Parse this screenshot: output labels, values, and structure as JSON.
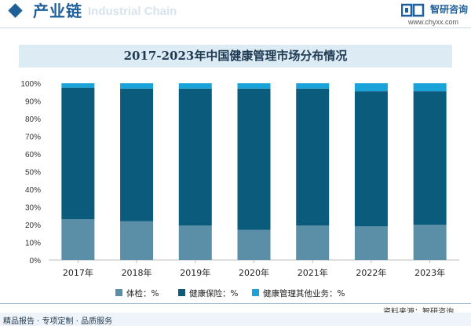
{
  "header": {
    "section_title": "产业链",
    "watermark_text": "Industrial Chain",
    "logo_name": "智研咨询",
    "logo_url": "www.chyxx.com"
  },
  "footer": {
    "source": "资料来源：智研咨询",
    "services": "精品报告 · 专项定制 · 品质服务"
  },
  "colors": {
    "series1": "#5b8fa8",
    "series2": "#0b5b7d",
    "series3": "#1aa3d9",
    "title_bar": "#dcebf4",
    "brand": "#1f5f9a"
  },
  "chart_data": {
    "type": "bar",
    "stacked": true,
    "title": "2017-2023年中国健康管理市场分布情况",
    "categories": [
      "2017年",
      "2018年",
      "2019年",
      "2020年",
      "2021年",
      "2022年",
      "2023年"
    ],
    "series": [
      {
        "name": "体检：%",
        "values": [
          23,
          22,
          19.5,
          17,
          19.5,
          19,
          20
        ]
      },
      {
        "name": "健康保险：%",
        "values": [
          74.5,
          75,
          77.5,
          80,
          77.5,
          76.5,
          75.5
        ]
      },
      {
        "name": "健康管理其他业务：%",
        "values": [
          2.5,
          3,
          3,
          3,
          3,
          4.5,
          4.5
        ]
      }
    ],
    "yticks": [
      "0%",
      "10%",
      "20%",
      "30%",
      "40%",
      "50%",
      "60%",
      "70%",
      "80%",
      "90%",
      "100%"
    ],
    "ylim": [
      0,
      100
    ],
    "grid": false,
    "legend_position": "bottom"
  }
}
